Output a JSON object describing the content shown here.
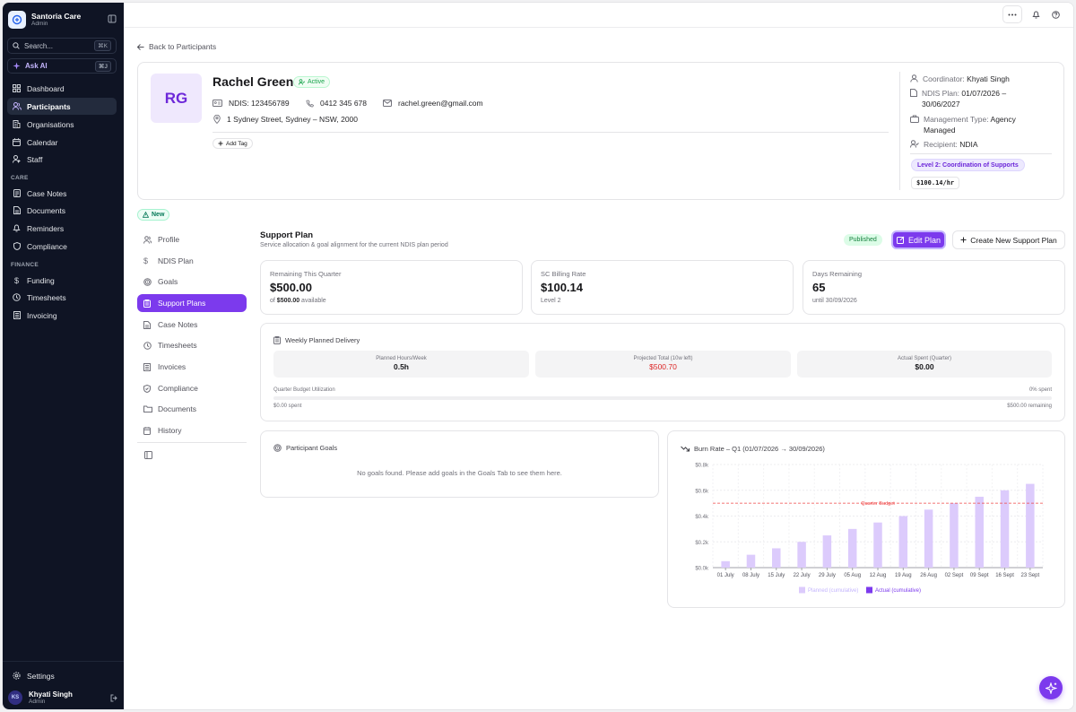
{
  "brand": {
    "name": "Santoria Care",
    "role": "Admin"
  },
  "search": {
    "placeholder": "Search...",
    "shortcut": "⌘K"
  },
  "ask_ai": {
    "label": "Ask AI",
    "shortcut": "⌘J"
  },
  "sidebar": {
    "main": [
      {
        "label": "Dashboard",
        "icon": "dashboard-icon"
      },
      {
        "label": "Participants",
        "icon": "users-icon"
      },
      {
        "label": "Organisations",
        "icon": "building-icon"
      },
      {
        "label": "Calendar",
        "icon": "calendar-icon"
      },
      {
        "label": "Staff",
        "icon": "staff-icon"
      }
    ],
    "care_label": "CARE",
    "care": [
      {
        "label": "Case Notes",
        "icon": "notes-icon"
      },
      {
        "label": "Documents",
        "icon": "document-icon"
      },
      {
        "label": "Reminders",
        "icon": "bell-icon"
      },
      {
        "label": "Compliance",
        "icon": "shield-icon"
      }
    ],
    "finance_label": "FINANCE",
    "finance": [
      {
        "label": "Funding",
        "icon": "dollar-icon"
      },
      {
        "label": "Timesheets",
        "icon": "clock-icon"
      },
      {
        "label": "Invoicing",
        "icon": "invoice-icon"
      }
    ],
    "settings": "Settings",
    "user": {
      "initials": "KS",
      "name": "Khyati Singh",
      "role": "Admin"
    }
  },
  "back_link": "Back to Participants",
  "participant": {
    "initials": "RG",
    "name": "Rachel Green",
    "status": "Active",
    "ndis": "NDIS: 123456789",
    "phone": "0412 345 678",
    "email": "rachel.green@gmail.com",
    "address": "1 Sydney Street, Sydney – NSW, 2000",
    "add_tag": "Add Tag"
  },
  "meta": {
    "coordinator_label": "Coordinator:",
    "coordinator": "Khyati Singh",
    "plan_label": "NDIS Plan:",
    "plan_line1": "01/07/2026 –",
    "plan_line2": "30/06/2027",
    "mgmt_label": "Management Type:",
    "mgmt_line1": "Agency",
    "mgmt_line2": "Managed",
    "recipient_label": "Recipient:",
    "recipient": "NDIA",
    "level": "Level 2: Coordination of Supports",
    "rate": "$100.14/hr"
  },
  "new_badge": "New",
  "subnav": [
    {
      "label": "Profile",
      "icon": "user-icon"
    },
    {
      "label": "NDIS Plan",
      "icon": "dollar-icon"
    },
    {
      "label": "Goals",
      "icon": "target-icon"
    },
    {
      "label": "Support Plans",
      "icon": "clipboard-icon",
      "active": true
    },
    {
      "label": "Case Notes",
      "icon": "notes-icon"
    },
    {
      "label": "Timesheets",
      "icon": "clock-icon"
    },
    {
      "label": "Invoices",
      "icon": "invoice-icon"
    },
    {
      "label": "Compliance",
      "icon": "shield-icon"
    },
    {
      "label": "Documents",
      "icon": "folder-icon"
    },
    {
      "label": "History",
      "icon": "history-icon"
    }
  ],
  "support_plan": {
    "title": "Support Plan",
    "subtitle": "Service allocation & goal alignment for the current NDIS plan period",
    "status": "Published",
    "edit_label": "Edit Plan",
    "create_label": "Create New Support Plan"
  },
  "stats": [
    {
      "label": "Remaining This Quarter",
      "value": "$500.00",
      "sub_prefix": "of ",
      "sub_strong": "$500.00",
      "sub_suffix": " available"
    },
    {
      "label": "SC Billing Rate",
      "value": "$100.14",
      "sub": "Level 2"
    },
    {
      "label": "Days Remaining",
      "value": "65",
      "sub": "until 30/09/2026"
    }
  ],
  "weekly": {
    "title": "Weekly Planned Delivery",
    "items": [
      {
        "label": "Planned Hours/Week",
        "value": "0.5h"
      },
      {
        "label": "Projected Total (10w left)",
        "value": "$500.70"
      },
      {
        "label": "Actual Spent (Quarter)",
        "value": "$0.00"
      }
    ],
    "util_label": "Quarter Budget Utilization",
    "util_pct_label": "0% spent",
    "util_fraction": 0,
    "spent_label": "$0.00 spent",
    "remaining_label": "$500.00 remaining"
  },
  "goals": {
    "title": "Participant Goals",
    "empty": "No goals found. Please add goals in the Goals Tab to see them here."
  },
  "colors": {
    "accent": "#7c3aed",
    "planned": "#dccbfc",
    "actual": "#7c3aed",
    "budget": "#ef4444",
    "danger": "#dc2626"
  },
  "chart_data": {
    "type": "bar",
    "title": "Burn Rate – Q1 (01/07/2026 → 30/09/2026)",
    "categories": [
      "01 July",
      "08 July",
      "15 July",
      "22 July",
      "29 July",
      "05 Aug",
      "12 Aug",
      "19 Aug",
      "26 Aug",
      "02 Sept",
      "09 Sept",
      "16 Sept",
      "23 Sept"
    ],
    "series": [
      {
        "name": "Planned (cumulative)",
        "values": [
          0.05,
          0.1,
          0.15,
          0.2,
          0.25,
          0.3,
          0.35,
          0.4,
          0.45,
          0.5,
          0.55,
          0.6,
          0.65
        ]
      },
      {
        "name": "Actual (cumulative)",
        "values": [
          0,
          0,
          0,
          0,
          0,
          0,
          0,
          0,
          0,
          0,
          0,
          0,
          0
        ]
      }
    ],
    "yticks": [
      "$0.0k",
      "$0.2k",
      "$0.4k",
      "$0.6k",
      "$0.8k"
    ],
    "ylim": [
      0,
      0.8
    ],
    "reference_line": {
      "label": "Quarter Budget",
      "value": 0.5
    },
    "grid": true,
    "legend": "bottom"
  }
}
